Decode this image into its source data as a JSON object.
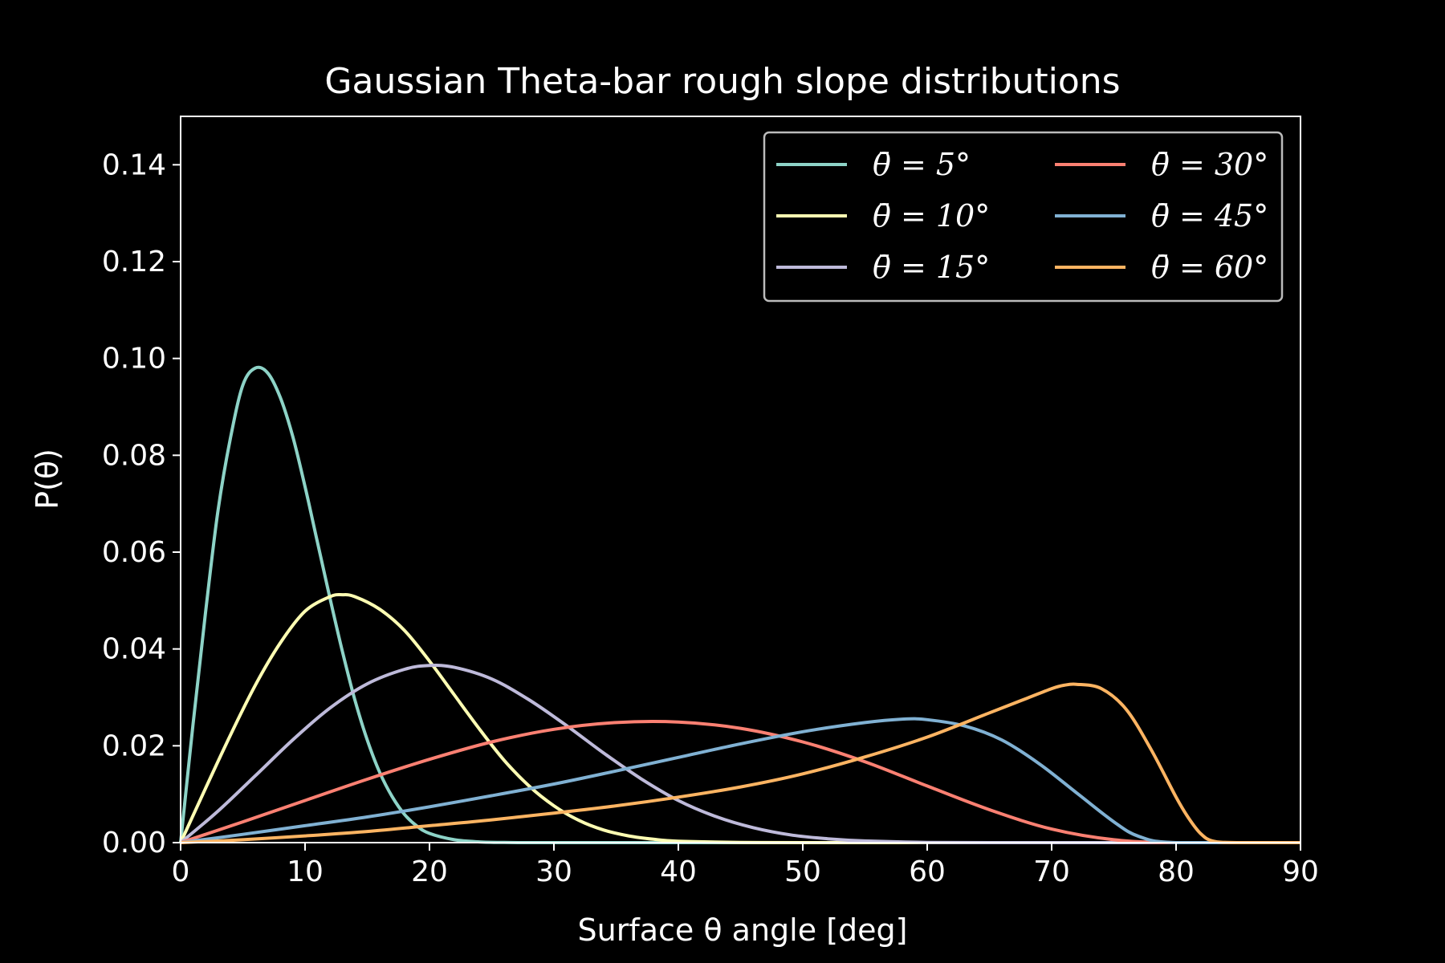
{
  "chart_data": {
    "type": "line",
    "title": "Gaussian Theta-bar rough slope distributions",
    "xlabel": "Surface θ angle [deg]",
    "ylabel": "P(θ)",
    "xlim": [
      0,
      90
    ],
    "ylim": [
      0,
      0.15
    ],
    "xticks": [
      "0",
      "10",
      "20",
      "30",
      "40",
      "50",
      "60",
      "70",
      "80",
      "90"
    ],
    "yticks": [
      "0.00",
      "0.02",
      "0.04",
      "0.06",
      "0.08",
      "0.10",
      "0.12",
      "0.14"
    ],
    "grid": false,
    "legend": {
      "position": "upper right",
      "columns": 2
    },
    "series": [
      {
        "name": "θ̄ = 5°",
        "color": "#8dd3c7",
        "x": [
          0,
          1,
          2,
          3,
          4,
          5,
          6,
          7,
          8,
          9,
          10,
          11,
          12,
          13,
          14,
          15,
          16,
          17,
          18,
          19,
          20,
          22,
          24,
          26,
          28,
          30,
          35,
          40,
          50,
          60,
          70,
          80,
          90
        ],
        "y": [
          0,
          0.0245,
          0.0475,
          0.0685,
          0.0835,
          0.0945,
          0.098,
          0.097,
          0.092,
          0.084,
          0.0735,
          0.062,
          0.0505,
          0.0395,
          0.0295,
          0.0212,
          0.0145,
          0.0095,
          0.0058,
          0.0034,
          0.0019,
          0.0006,
          0.00015,
          3e-05,
          0,
          0,
          0,
          0,
          0,
          0,
          0,
          0,
          0
        ]
      },
      {
        "name": "θ̄ = 10°",
        "color": "#ffffb3",
        "x": [
          0,
          2,
          4,
          6,
          8,
          10,
          12,
          13,
          14,
          16,
          18,
          20,
          22,
          24,
          26,
          28,
          30,
          32,
          34,
          36,
          38,
          40,
          45,
          50,
          60,
          70,
          80,
          90
        ],
        "y": [
          0,
          0.0112,
          0.0222,
          0.0325,
          0.0412,
          0.0478,
          0.0508,
          0.0512,
          0.0508,
          0.0482,
          0.0438,
          0.0375,
          0.0305,
          0.0235,
          0.017,
          0.0117,
          0.0076,
          0.0046,
          0.0026,
          0.0014,
          0.0007,
          0.0003,
          5e-05,
          0,
          0,
          0,
          0,
          0
        ]
      },
      {
        "name": "θ̄ = 15°",
        "color": "#bebada",
        "x": [
          0,
          3,
          6,
          9,
          12,
          15,
          18,
          20,
          22,
          25,
          28,
          31,
          34,
          37,
          40,
          43,
          46,
          49,
          52,
          55,
          60,
          65,
          70,
          80,
          90
        ],
        "y": [
          0,
          0.0065,
          0.0138,
          0.0212,
          0.0278,
          0.0328,
          0.0358,
          0.0366,
          0.0362,
          0.0338,
          0.0295,
          0.0242,
          0.0185,
          0.0132,
          0.0087,
          0.0054,
          0.0031,
          0.0016,
          0.0008,
          0.00035,
          5e-05,
          0,
          0,
          0,
          0
        ]
      },
      {
        "name": "θ̄ = 30°",
        "color": "#fb8072",
        "x": [
          0,
          5,
          10,
          15,
          20,
          25,
          30,
          35,
          40,
          45,
          50,
          55,
          60,
          65,
          70,
          75,
          80,
          90
        ],
        "y": [
          0,
          0.0043,
          0.0087,
          0.0131,
          0.0172,
          0.0208,
          0.0234,
          0.0248,
          0.0249,
          0.0236,
          0.0208,
          0.0167,
          0.0117,
          0.0068,
          0.0028,
          0.0006,
          0,
          0
        ]
      },
      {
        "name": "θ̄ = 45°",
        "color": "#80b1d3",
        "x": [
          0,
          5,
          10,
          15,
          20,
          25,
          30,
          35,
          40,
          45,
          50,
          55,
          58,
          60,
          63,
          66,
          69,
          72,
          75,
          77,
          80,
          90
        ],
        "y": [
          0,
          0.0017,
          0.0035,
          0.0053,
          0.0074,
          0.0097,
          0.0121,
          0.0148,
          0.0176,
          0.0204,
          0.0229,
          0.0248,
          0.0255,
          0.0254,
          0.0241,
          0.0212,
          0.0163,
          0.0103,
          0.0043,
          0.0013,
          0,
          0
        ]
      },
      {
        "name": "θ̄ = 60°",
        "color": "#fdb462",
        "x": [
          0,
          5,
          10,
          15,
          20,
          25,
          30,
          35,
          40,
          45,
          50,
          55,
          60,
          65,
          68,
          70,
          71,
          72,
          74,
          76,
          78,
          80,
          81,
          82,
          83,
          85,
          90
        ],
        "y": [
          0,
          0.0006,
          0.0014,
          0.0023,
          0.0035,
          0.0047,
          0.0061,
          0.0076,
          0.0094,
          0.0115,
          0.0142,
          0.0177,
          0.0218,
          0.0268,
          0.0298,
          0.0318,
          0.0325,
          0.0327,
          0.0318,
          0.0275,
          0.0192,
          0.0094,
          0.0051,
          0.0018,
          0.0003,
          0,
          0
        ]
      }
    ]
  }
}
